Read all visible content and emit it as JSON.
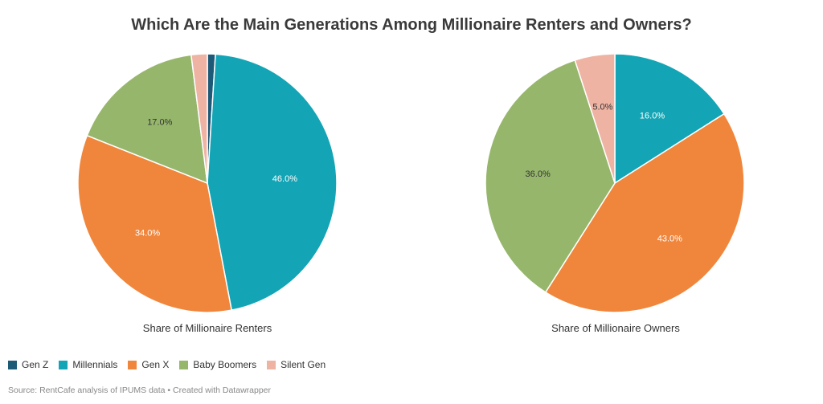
{
  "title": "Which Are the Main Generations Among Millionaire Renters and Owners?",
  "source": "Source: RentCafe analysis of IPUMS data • Created with Datawrapper",
  "legend": [
    {
      "label": "Gen Z",
      "color": "#1d5a78"
    },
    {
      "label": "Millennials",
      "color": "#13a5b5"
    },
    {
      "label": "Gen X",
      "color": "#f0863c"
    },
    {
      "label": "Baby Boomers",
      "color": "#96b66c"
    },
    {
      "label": "Silent Gen",
      "color": "#efb3a3"
    }
  ],
  "chart_data": [
    {
      "type": "pie",
      "title": "Share of Millionaire Renters",
      "categories": [
        "Gen Z",
        "Millennials",
        "Gen X",
        "Baby Boomers",
        "Silent Gen"
      ],
      "values": [
        1.0,
        46.0,
        34.0,
        17.0,
        2.0
      ],
      "data_labels": [
        "",
        "46.0%",
        "34.0%",
        "17.0%",
        ""
      ],
      "colors": [
        "#1d5a78",
        "#13a5b5",
        "#f0863c",
        "#96b66c",
        "#efb3a3"
      ]
    },
    {
      "type": "pie",
      "title": "Share of Millionaire Owners",
      "categories": [
        "Gen Z",
        "Millennials",
        "Gen X",
        "Baby Boomers",
        "Silent Gen"
      ],
      "values": [
        0.0,
        16.0,
        43.0,
        36.0,
        5.0
      ],
      "data_labels": [
        "",
        "16.0%",
        "43.0%",
        "36.0%",
        "5.0%"
      ],
      "colors": [
        "#1d5a78",
        "#13a5b5",
        "#f0863c",
        "#96b66c",
        "#efb3a3"
      ]
    }
  ]
}
